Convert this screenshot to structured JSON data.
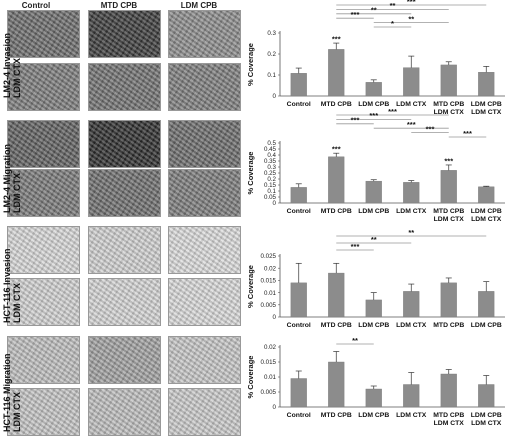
{
  "headers": {
    "col1": "Control",
    "col2": "MTD CPB",
    "col3": "LDM CPB"
  },
  "row_labels": [
    {
      "line1": "LM2-4 Invasion",
      "line2": "LDM CTX"
    },
    {
      "line1": "LM2-4 Migration",
      "line2": "LDM CTX"
    },
    {
      "line1": "HCT-116 Invasion",
      "line2": "LDM CTX"
    },
    {
      "line1": "HCT-116 Migration",
      "line2": "LDM CTX"
    }
  ],
  "micro_tones": [
    [
      "#6a6a6a",
      "#3a3a3a",
      "#8a8a8a"
    ],
    [
      "#7a7a7a",
      "#6f6f6f",
      "#7c7c7c"
    ],
    [
      "#5e5e5e",
      "#2c2c2c",
      "#6a6a6a"
    ],
    [
      "#777777",
      "#6c6c6c",
      "#7a7a7a"
    ],
    [
      "#d6d6d6",
      "#cfcfcf",
      "#dadada"
    ],
    [
      "#d0d0d0",
      "#d3d3d3",
      "#d8d8d8"
    ],
    [
      "#bdbdbd",
      "#9f9f9f",
      "#c5c5c5"
    ],
    [
      "#c3c3c3",
      "#bdbdbd",
      "#c9c9c9"
    ]
  ],
  "chart_data": [
    {
      "type": "bar",
      "ylabel": "% Coverage",
      "categories": [
        "Control",
        "MTD CPB",
        "LDM CPB",
        "LDM CTX",
        "MTD CPB\nLDM CTX",
        "LDM CPB\nLDM CTX"
      ],
      "values": [
        0.108,
        0.222,
        0.065,
        0.135,
        0.148,
        0.113
      ],
      "errors": [
        0.025,
        0.03,
        0.012,
        0.055,
        0.015,
        0.028
      ],
      "ylim": [
        0,
        0.3
      ],
      "yticks": [
        "0",
        "0.1",
        "0.2",
        "0.3"
      ],
      "bar_stars": [
        "",
        "***",
        "",
        "",
        "",
        ""
      ],
      "brackets": [
        {
          "from": 1,
          "to": 5,
          "label": "***"
        },
        {
          "from": 1,
          "to": 4,
          "label": "**"
        },
        {
          "from": 1,
          "to": 3,
          "label": "**"
        },
        {
          "from": 1,
          "to": 2,
          "label": "***"
        },
        {
          "from": 2,
          "to": 4,
          "label": "**"
        },
        {
          "from": 2,
          "to": 3,
          "label": "*"
        }
      ]
    },
    {
      "type": "bar",
      "ylabel": "% Coverage",
      "categories": [
        "Control",
        "MTD CPB",
        "LDM CPB",
        "LDM CTX",
        "MTD CPB\nLDM CTX",
        "LDM CPB\nLDM CTX"
      ],
      "values": [
        0.13,
        0.385,
        0.182,
        0.172,
        0.272,
        0.135
      ],
      "errors": [
        0.03,
        0.03,
        0.012,
        0.015,
        0.045,
        0.005
      ],
      "ylim": [
        0,
        0.5
      ],
      "yticks": [
        "0",
        "0.05",
        "0.1",
        "0.15",
        "0.2",
        "0.25",
        "0.3",
        "0.35",
        "0.4",
        "0.45",
        "0.5"
      ],
      "bar_stars": [
        "",
        "***",
        "",
        "",
        "***",
        ""
      ],
      "brackets": [
        {
          "from": 1,
          "to": 4,
          "label": "***"
        },
        {
          "from": 1,
          "to": 3,
          "label": "***"
        },
        {
          "from": 1,
          "to": 2,
          "label": "***"
        },
        {
          "from": 2,
          "to": 4,
          "label": "***"
        },
        {
          "from": 3,
          "to": 4,
          "label": "***"
        },
        {
          "from": 4,
          "to": 5,
          "label": "***"
        }
      ]
    },
    {
      "type": "bar",
      "ylabel": "% Coverage",
      "categories": [
        "Control",
        "MTD CPB",
        "LDM CPB",
        "LDM CTX",
        "MTD CPB",
        "LDM CPB"
      ],
      "values": [
        0.014,
        0.018,
        0.007,
        0.0105,
        0.014,
        0.0105
      ],
      "errors": [
        0.008,
        0.004,
        0.003,
        0.003,
        0.002,
        0.004
      ],
      "ylim": [
        0,
        0.025
      ],
      "yticks": [
        "0",
        "0.005",
        "0.01",
        "0.015",
        "0.02",
        "0.025"
      ],
      "bar_stars": [
        "",
        "",
        "",
        "",
        "",
        ""
      ],
      "brackets": [
        {
          "from": 1,
          "to": 5,
          "label": "**"
        },
        {
          "from": 1,
          "to": 3,
          "label": "**"
        },
        {
          "from": 1,
          "to": 2,
          "label": "***"
        }
      ]
    },
    {
      "type": "bar",
      "ylabel": "% Coverage",
      "categories": [
        "Control",
        "MTD CPB",
        "LDM CPB",
        "LDM CTX",
        "MTD CPB\nLDM CTX",
        "LDM CPB\nLDM CTX"
      ],
      "values": [
        0.0095,
        0.015,
        0.006,
        0.0075,
        0.011,
        0.0075
      ],
      "errors": [
        0.0025,
        0.0035,
        0.001,
        0.004,
        0.0015,
        0.003
      ],
      "ylim": [
        0,
        0.02
      ],
      "yticks": [
        "0",
        "0.005",
        "0.01",
        "0.015",
        "0.02"
      ],
      "bar_stars": [
        "",
        "",
        "",
        "",
        "",
        ""
      ],
      "brackets": [
        {
          "from": 1,
          "to": 2,
          "label": "**"
        }
      ]
    }
  ]
}
